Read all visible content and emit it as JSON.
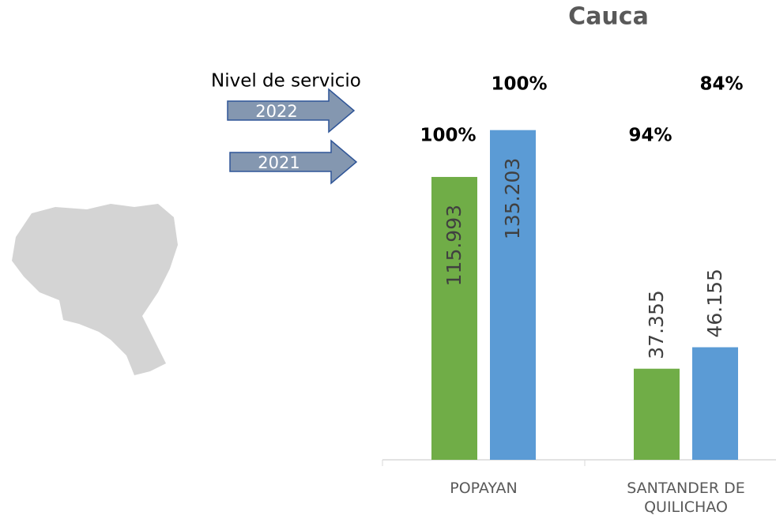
{
  "chart_data": {
    "type": "bar",
    "title": "Cauca",
    "legend_title": "Nivel de servicio",
    "categories": [
      "POPAYAN",
      "SANTANDER DE QUILICHAO"
    ],
    "ylim": [
      0,
      150000
    ],
    "series": [
      {
        "name": "2021",
        "color": "#70ad47",
        "values": [
          115993,
          37355
        ],
        "value_labels": [
          "115.993",
          "37.355"
        ],
        "service_level": [
          100,
          94
        ],
        "service_level_labels": [
          "100%",
          "94%"
        ]
      },
      {
        "name": "2022",
        "color": "#5b9bd5",
        "values": [
          135203,
          46155
        ],
        "value_labels": [
          "135.203",
          "46.155"
        ],
        "service_level": [
          100,
          84
        ],
        "service_level_labels": [
          "100%",
          "84%"
        ]
      }
    ]
  }
}
